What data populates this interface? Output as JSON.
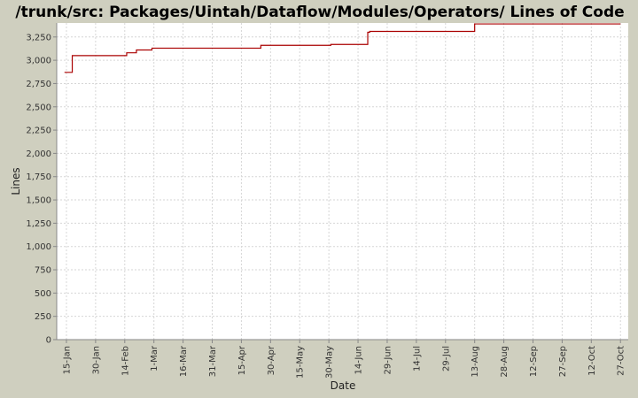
{
  "chart_data": {
    "type": "line",
    "title": "/trunk/src: Packages/Uintah/Dataflow/Modules/Operators/ Lines of Code",
    "xlabel": "Date",
    "ylabel": "Lines",
    "ylim": [
      0,
      3400
    ],
    "yticks": [
      0,
      250,
      500,
      750,
      1000,
      1250,
      1500,
      1750,
      2000,
      2250,
      2500,
      2750,
      3000,
      3250
    ],
    "ytick_labels": [
      "0",
      "250",
      "500",
      "750",
      "1,000",
      "1,250",
      "1,500",
      "1,750",
      "2,000",
      "2,250",
      "2,500",
      "2,750",
      "3,000",
      "3,250"
    ],
    "xlim": [
      "2003-01-10",
      "2003-10-31"
    ],
    "xticks": [
      "2003-01-15",
      "2003-01-30",
      "2003-02-14",
      "2003-03-01",
      "2003-03-16",
      "2003-03-31",
      "2003-04-15",
      "2003-04-30",
      "2003-05-15",
      "2003-05-30",
      "2003-06-14",
      "2003-06-29",
      "2003-07-14",
      "2003-07-29",
      "2003-08-13",
      "2003-08-28",
      "2003-09-12",
      "2003-09-27",
      "2003-10-12",
      "2003-10-27"
    ],
    "xtick_labels": [
      "15-Jan",
      "30-Jan",
      "14-Feb",
      "1-Mar",
      "16-Mar",
      "31-Mar",
      "15-Apr",
      "30-Apr",
      "15-May",
      "30-May",
      "14-Jun",
      "29-Jun",
      "14-Jul",
      "29-Jul",
      "13-Aug",
      "28-Aug",
      "12-Sep",
      "27-Sep",
      "12-Oct",
      "27-Oct"
    ],
    "grid": true,
    "series": [
      {
        "color": "#aa0000",
        "step": true,
        "points": [
          [
            "2003-01-14",
            2870
          ],
          [
            "2003-01-18",
            3050
          ],
          [
            "2003-02-15",
            3080
          ],
          [
            "2003-02-20",
            3110
          ],
          [
            "2003-02-28",
            3130
          ],
          [
            "2003-04-25",
            3160
          ],
          [
            "2003-05-31",
            3170
          ],
          [
            "2003-06-19",
            3300
          ],
          [
            "2003-06-20",
            3310
          ],
          [
            "2003-08-13",
            3390
          ],
          [
            "2003-10-27",
            3390
          ]
        ]
      }
    ]
  }
}
